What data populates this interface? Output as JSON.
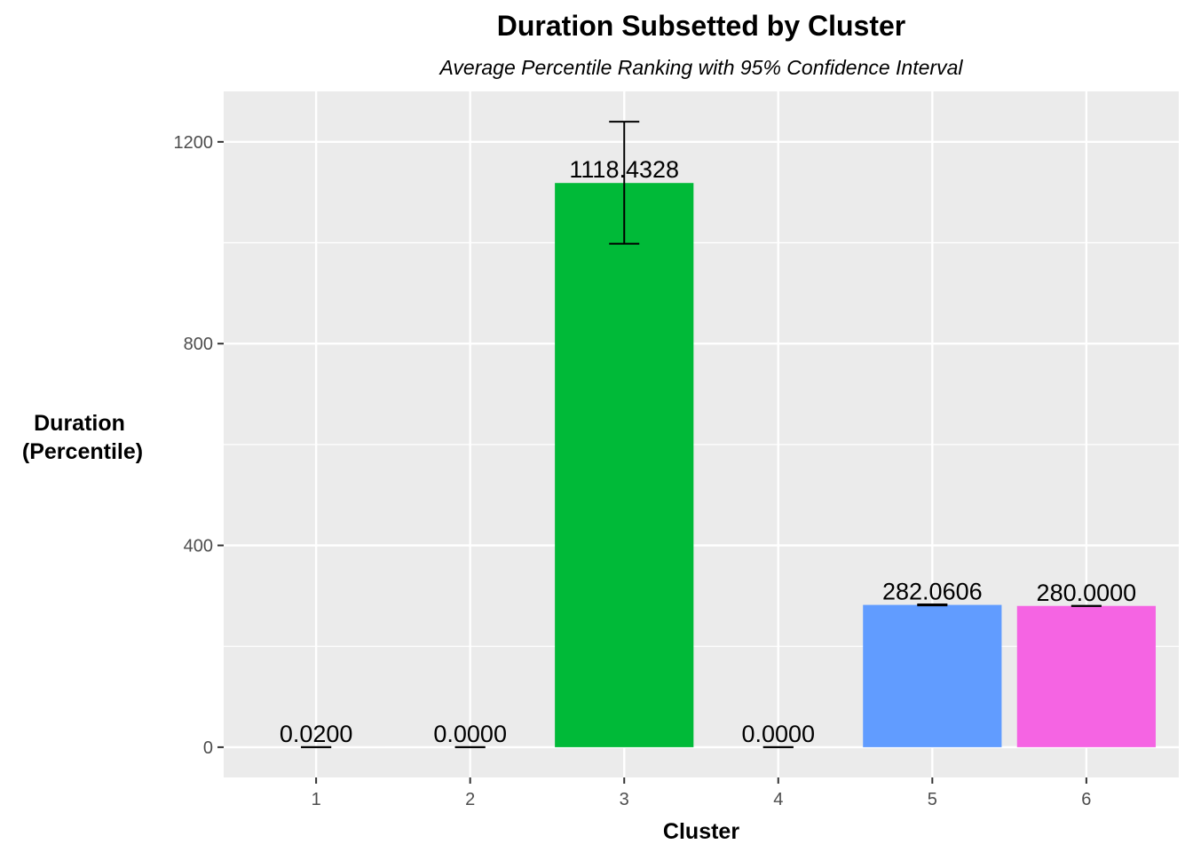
{
  "chart_data": {
    "type": "bar",
    "title": "Duration Subsetted by Cluster",
    "subtitle": "Average Percentile Ranking with 95% Confidence Interval",
    "xlabel": "Cluster",
    "ylabel_lines": [
      "Duration",
      "(Percentile)"
    ],
    "categories": [
      "1",
      "2",
      "3",
      "4",
      "5",
      "6"
    ],
    "values": [
      0.02,
      0.0,
      1118.4328,
      0.0,
      282.0606,
      280.0
    ],
    "data_labels": [
      "0.0200",
      "0.0000",
      "1118.4328",
      "0.0000",
      "282.0606",
      "280.0000"
    ],
    "error_bars": [
      {
        "low": 0.0,
        "high": 0.04
      },
      {
        "low": 0.0,
        "high": 0.0
      },
      {
        "low": 998,
        "high": 1240
      },
      {
        "low": 0.0,
        "high": 0.0
      },
      {
        "low": 281,
        "high": 283
      },
      {
        "low": 280,
        "high": 280
      }
    ],
    "colors": [
      "#F8766D",
      "#B79F00",
      "#00BA38",
      "#00BFC4",
      "#619CFF",
      "#F564E3"
    ],
    "ylim": [
      -60,
      1300
    ],
    "yticks": [
      0,
      400,
      800,
      1200
    ],
    "y_minor_ticks": [
      200,
      600,
      1000
    ],
    "grid": true,
    "panel_color": "#EBEBEB",
    "grid_color": "#FFFFFF",
    "legend": "none"
  }
}
